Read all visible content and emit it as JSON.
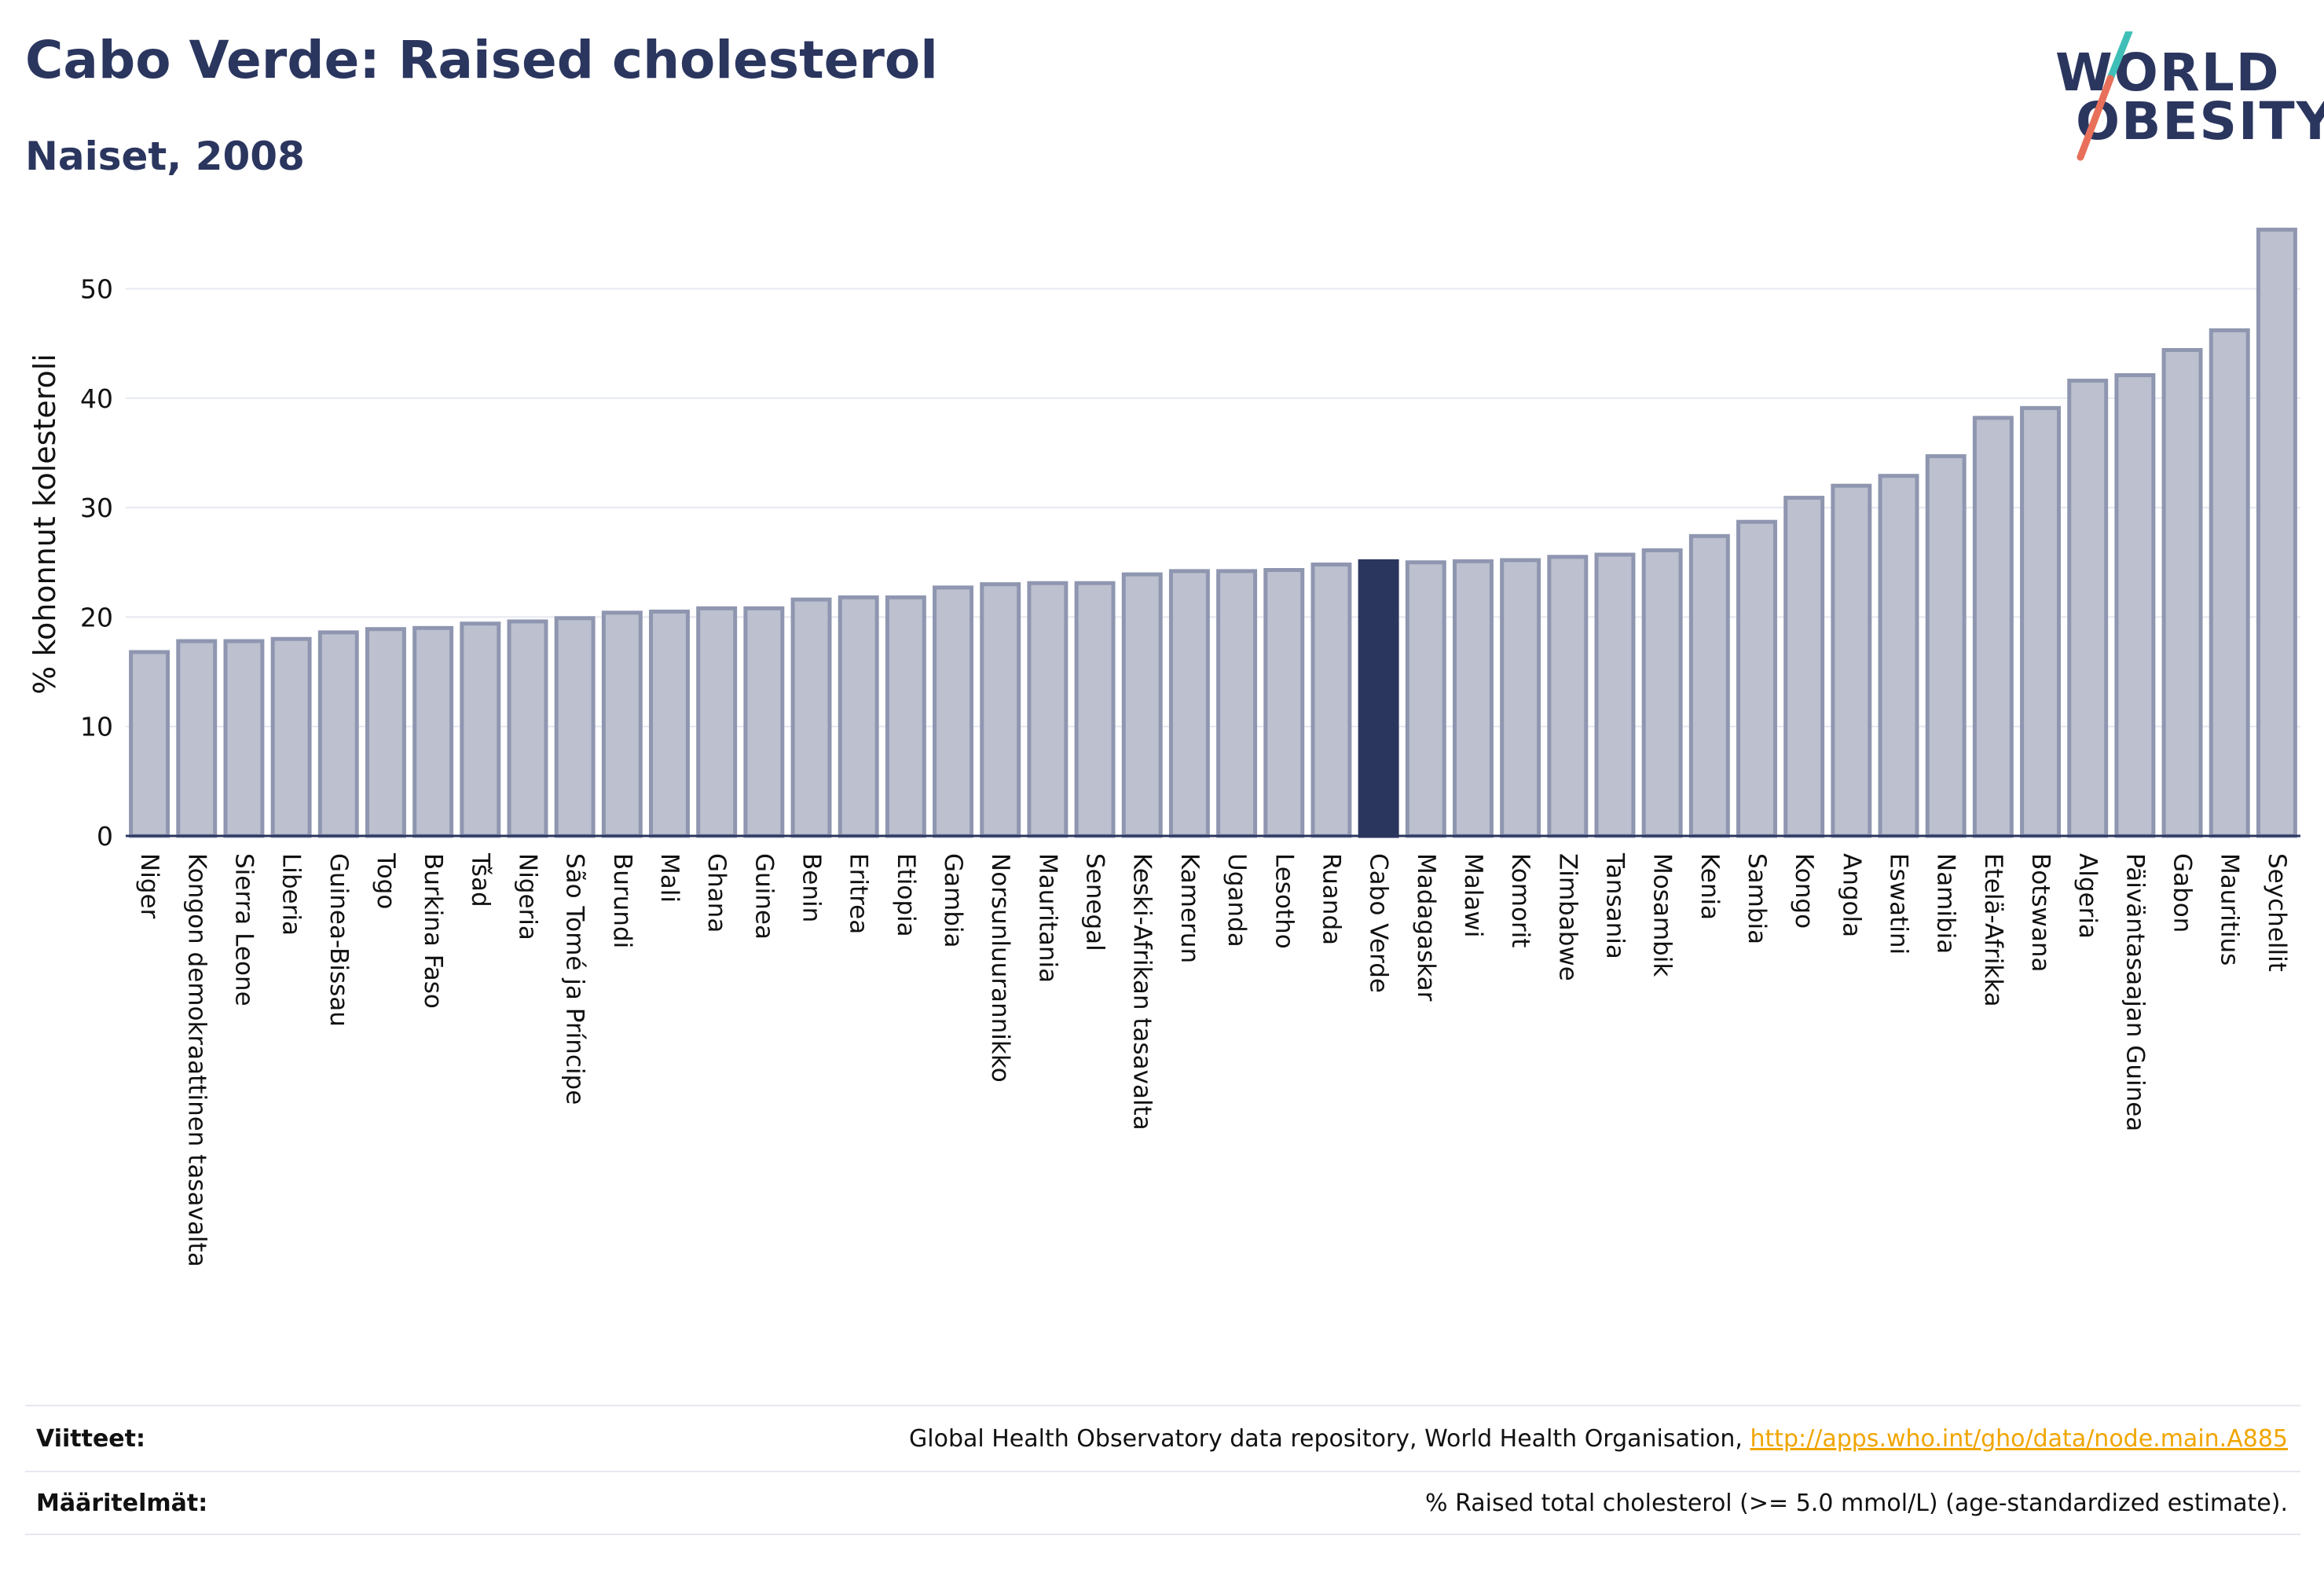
{
  "title": "Cabo Verde: Raised cholesterol",
  "subtitle": "Naiset, 2008",
  "logo": {
    "line1": "WORLD",
    "line2": "OBESITY"
  },
  "colors": {
    "highlight": "#2b365f",
    "bar": "#bcc0cf",
    "bar_border": "#8f96b0",
    "grid": "#e6e8f0",
    "logo_slash_top": "#3fbfb7",
    "logo_slash_bottom": "#e8705a",
    "link": "#f0a500"
  },
  "chart_data": {
    "type": "bar",
    "ylabel": "% kohonnut kolesteroli",
    "ylim": [
      0,
      57
    ],
    "yticks": [
      0,
      10,
      20,
      30,
      40,
      50
    ],
    "grid": true,
    "highlight_category": "Cabo Verde",
    "categories": [
      "Niger",
      "Kongon demokraattinen tasavalta",
      "Sierra Leone",
      "Liberia",
      "Guinea-Bissau",
      "Togo",
      "Burkina Faso",
      "Tšad",
      "Nigeria",
      "São Tomé ja Príncipe",
      "Burundi",
      "Mali",
      "Ghana",
      "Guinea",
      "Benin",
      "Eritrea",
      "Etiopia",
      "Gambia",
      "Norsunluurannikko",
      "Mauritania",
      "Senegal",
      "Keski-Afrikan tasavalta",
      "Kamerun",
      "Uganda",
      "Lesotho",
      "Ruanda",
      "Cabo Verde",
      "Madagaskar",
      "Malawi",
      "Komorit",
      "Zimbabwe",
      "Tansania",
      "Mosambik",
      "Kenia",
      "Sambia",
      "Kongo",
      "Angola",
      "Eswatini",
      "Namibia",
      "Etelä-Afrikka",
      "Botswana",
      "Algeria",
      "Päiväntasaajan Guinea",
      "Gabon",
      "Mauritius",
      "Seychellit"
    ],
    "values": [
      16.8,
      17.8,
      17.8,
      18.0,
      18.6,
      18.9,
      19.0,
      19.4,
      19.6,
      19.9,
      20.4,
      20.5,
      20.8,
      20.8,
      21.6,
      21.8,
      21.8,
      22.7,
      23.0,
      23.1,
      23.1,
      23.9,
      24.2,
      24.2,
      24.3,
      24.8,
      25.1,
      25.0,
      25.1,
      25.2,
      25.5,
      25.7,
      26.1,
      27.4,
      28.7,
      30.9,
      32.0,
      32.9,
      34.7,
      38.2,
      39.1,
      41.6,
      42.1,
      44.4,
      46.2,
      55.4
    ]
  },
  "footer": {
    "references_label": "Viitteet:",
    "references_text": "Global Health Observatory data repository, World Health Organisation, ",
    "references_link": "http://apps.who.int/gho/data/node.main.A885",
    "definitions_label": "Määritelmät:",
    "definitions_text": "% Raised total cholesterol (>= 5.0 mmol/L) (age-standardized estimate)."
  }
}
